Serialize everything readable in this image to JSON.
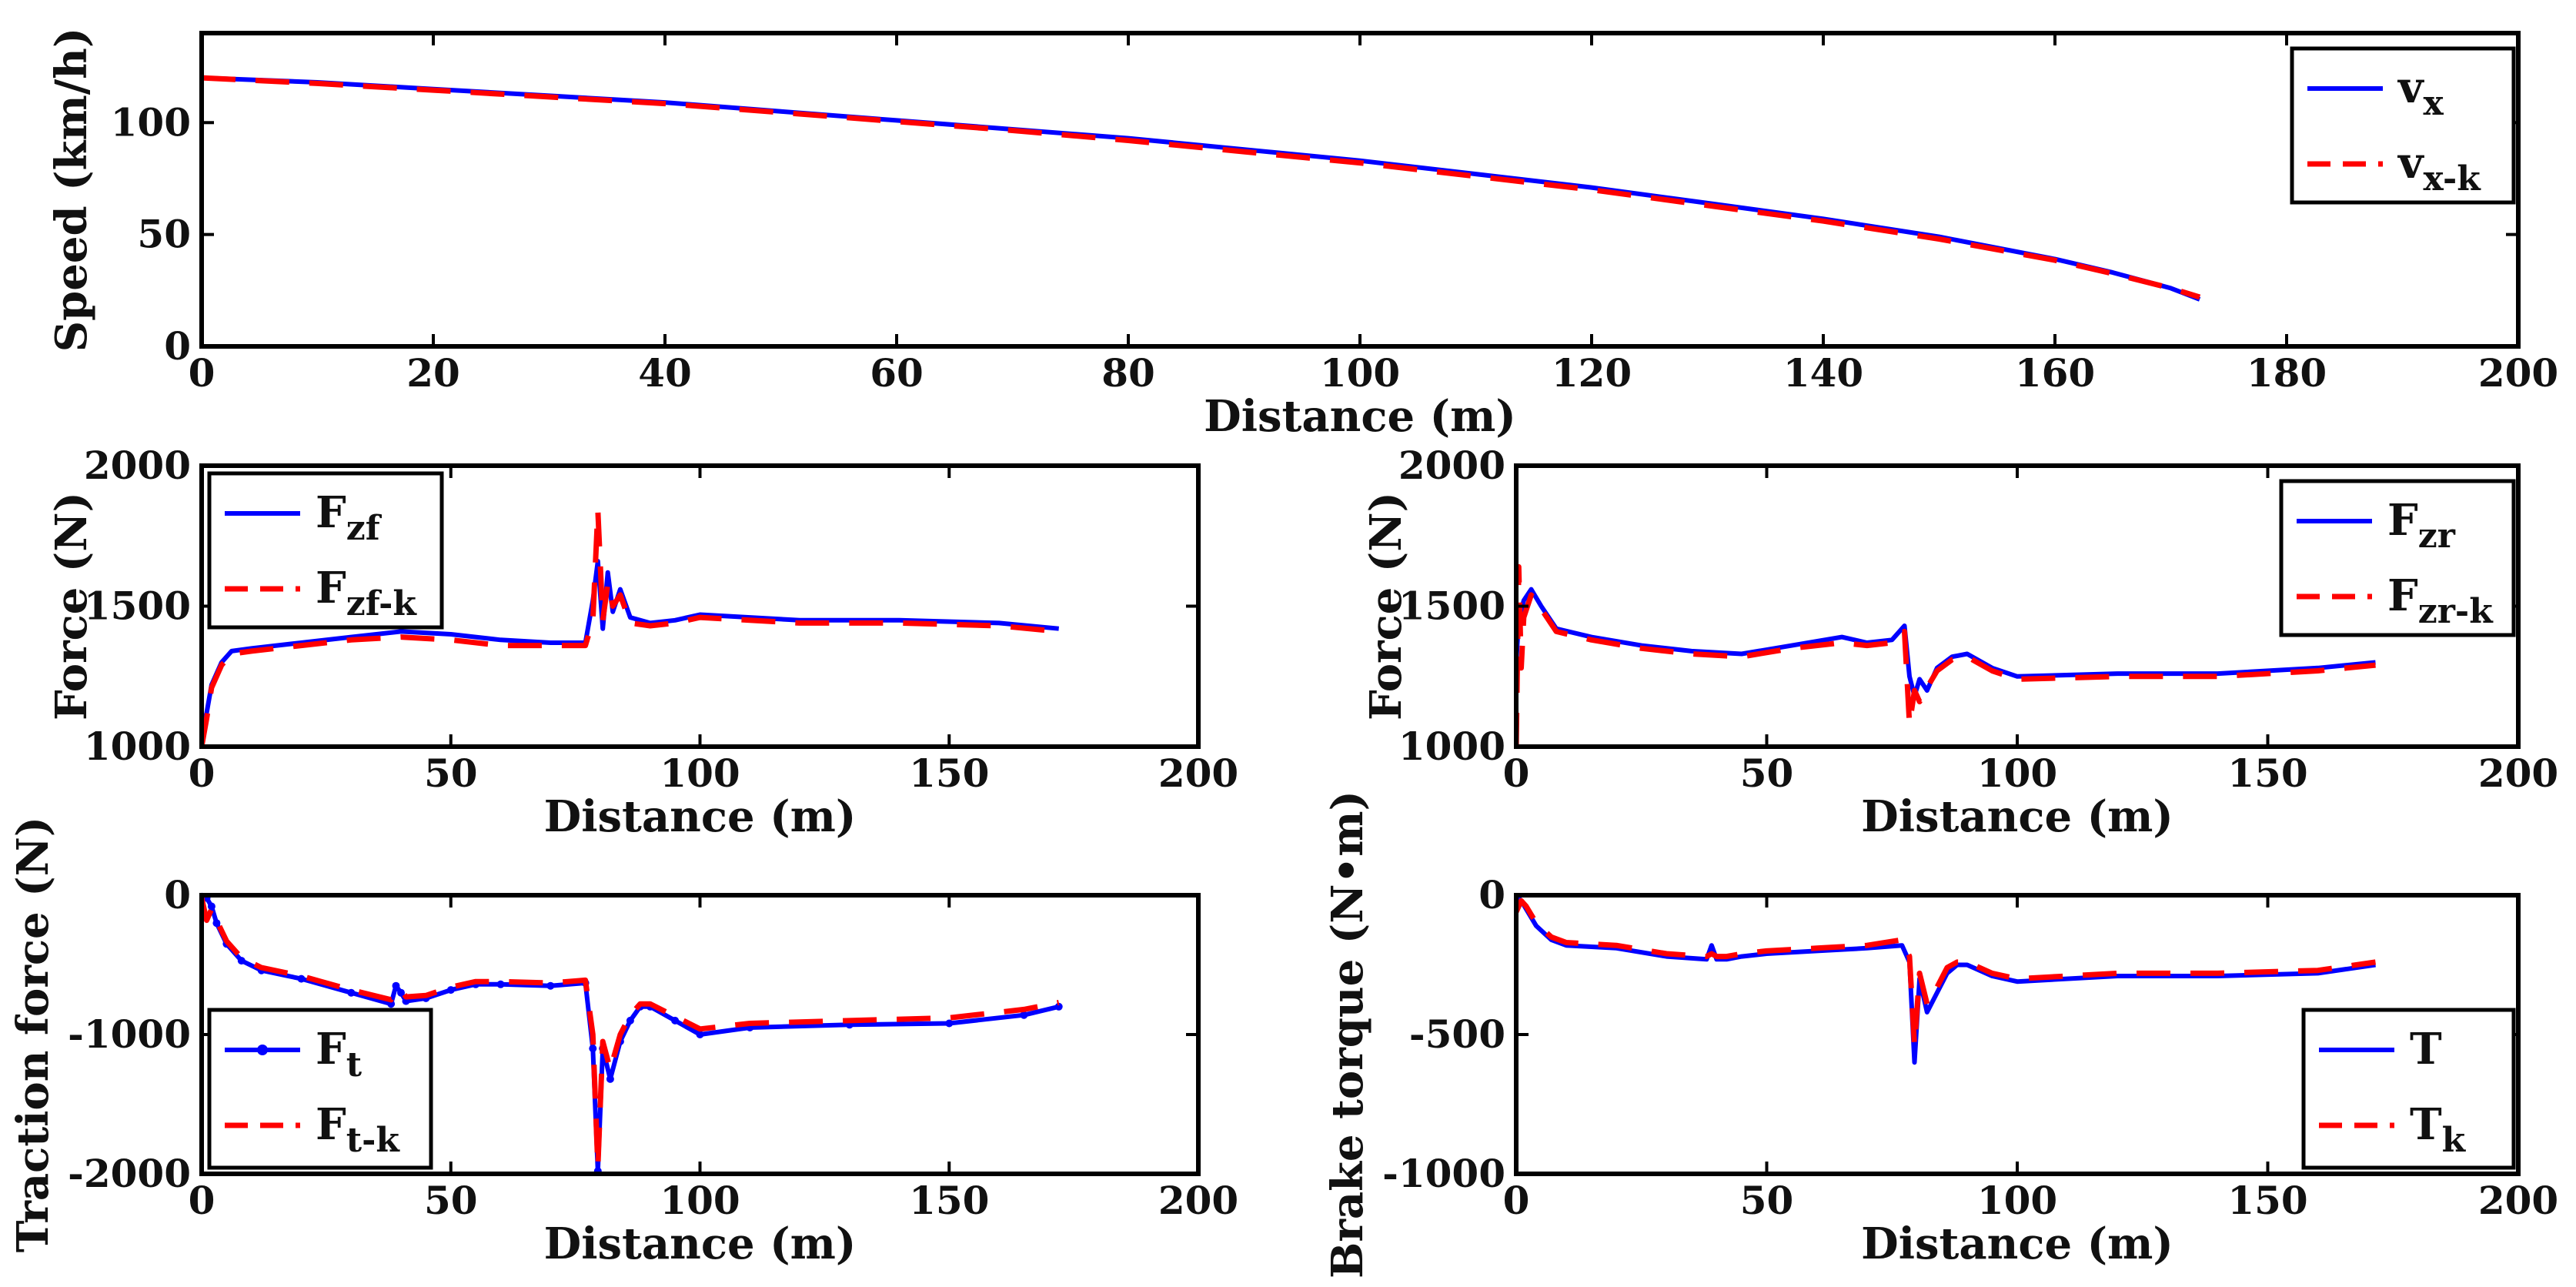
{
  "figure": {
    "background": "#ffffff",
    "axis_color": "#000000"
  },
  "chart_data": [
    {
      "id": "speed",
      "type": "line",
      "xlabel": "Distance (m)",
      "ylabel": "Speed (km/h)",
      "xlim": [
        0,
        200
      ],
      "ylim": [
        0,
        140
      ],
      "xticks": [
        0,
        20,
        40,
        60,
        80,
        100,
        120,
        140,
        160,
        180,
        200
      ],
      "yticks": [
        0,
        50,
        100
      ],
      "legend_position": "top-right",
      "series": [
        {
          "name": "vx",
          "label_main": "v",
          "label_sub": "x",
          "color": "#0000ff",
          "style": "solid",
          "x": [
            0,
            10,
            20,
            30,
            40,
            50,
            60,
            70,
            80,
            90,
            100,
            110,
            120,
            130,
            140,
            150,
            160,
            165,
            170,
            172.5
          ],
          "y": [
            120,
            118,
            115,
            112,
            109,
            105,
            101,
            97,
            93,
            88,
            83,
            77,
            71,
            64,
            57,
            49,
            39,
            33,
            26,
            21
          ]
        },
        {
          "name": "vx-k",
          "label_main": "v",
          "label_sub": "x-k",
          "color": "#ff0000",
          "style": "dashed",
          "x": [
            0,
            10,
            20,
            30,
            40,
            50,
            60,
            70,
            80,
            90,
            100,
            110,
            120,
            130,
            140,
            150,
            160,
            165,
            170,
            172.5
          ],
          "y": [
            120,
            117.5,
            114.5,
            111.5,
            108.5,
            104.5,
            100.5,
            96.5,
            92,
            87,
            82,
            76,
            70,
            63,
            56,
            48,
            38.5,
            32.5,
            26,
            22
          ]
        }
      ]
    },
    {
      "id": "front-force",
      "type": "line",
      "xlabel": "Distance (m)",
      "ylabel": "Force (N)",
      "xlim": [
        0,
        200
      ],
      "ylim": [
        1000,
        2000
      ],
      "xticks": [
        0,
        50,
        100,
        150,
        200
      ],
      "yticks": [
        1000,
        1500,
        2000
      ],
      "legend_position": "top-left",
      "series": [
        {
          "name": "Fzf",
          "label_main": "F",
          "label_sub": "zf",
          "color": "#0000ff",
          "style": "solid",
          "x": [
            0,
            1,
            2,
            4,
            6,
            10,
            20,
            30,
            40,
            50,
            60,
            70,
            77,
            78.5,
            79.5,
            80.5,
            81.5,
            82.5,
            84,
            86,
            90,
            95,
            100,
            110,
            120,
            140,
            160,
            172
          ],
          "y": [
            1060,
            1120,
            1220,
            1300,
            1340,
            1350,
            1370,
            1390,
            1410,
            1400,
            1380,
            1370,
            1370,
            1520,
            1660,
            1420,
            1620,
            1480,
            1560,
            1460,
            1440,
            1450,
            1470,
            1460,
            1450,
            1450,
            1440,
            1420
          ]
        },
        {
          "name": "Fzf-k",
          "label_main": "F",
          "label_sub": "zf-k",
          "color": "#ff0000",
          "style": "dashed",
          "x": [
            0,
            1,
            2,
            4,
            6,
            10,
            20,
            30,
            40,
            50,
            60,
            70,
            77,
            78.5,
            79.5,
            80.5,
            81.5,
            82.5,
            84,
            86,
            90,
            95,
            100,
            110,
            120,
            140,
            160,
            172
          ],
          "y": [
            1000,
            1100,
            1210,
            1290,
            1330,
            1340,
            1360,
            1380,
            1390,
            1380,
            1360,
            1360,
            1360,
            1450,
            1840,
            1450,
            1580,
            1500,
            1540,
            1440,
            1430,
            1440,
            1460,
            1450,
            1440,
            1440,
            1430,
            1410
          ]
        }
      ]
    },
    {
      "id": "rear-force",
      "type": "line",
      "xlabel": "Distance (m)",
      "ylabel": "Force (N)",
      "xlim": [
        0,
        200
      ],
      "ylim": [
        1000,
        2000
      ],
      "xticks": [
        0,
        50,
        100,
        150,
        200
      ],
      "yticks": [
        1000,
        1500,
        2000
      ],
      "legend_position": "top-right",
      "series": [
        {
          "name": "Fzr",
          "label_main": "F",
          "label_sub": "zr",
          "color": "#0000ff",
          "style": "solid",
          "x": [
            0,
            0.5,
            1.5,
            3,
            5,
            8,
            15,
            25,
            35,
            45,
            55,
            65,
            70,
            75,
            77.5,
            78.5,
            79.5,
            80.5,
            82,
            84,
            87,
            90,
            95,
            100,
            120,
            140,
            160,
            171.5
          ],
          "y": [
            1300,
            1450,
            1520,
            1560,
            1500,
            1420,
            1390,
            1360,
            1340,
            1330,
            1360,
            1390,
            1370,
            1380,
            1430,
            1250,
            1180,
            1240,
            1200,
            1280,
            1320,
            1330,
            1280,
            1250,
            1260,
            1260,
            1280,
            1300
          ]
        },
        {
          "name": "Fzr-k",
          "label_main": "F",
          "label_sub": "zr-k",
          "color": "#ff0000",
          "style": "dashed",
          "x": [
            0,
            0.5,
            1,
            1.5,
            3,
            5,
            8,
            15,
            25,
            35,
            45,
            55,
            65,
            70,
            75,
            77.5,
            78.5,
            79.5,
            80.5,
            82,
            84,
            87,
            90,
            95,
            100,
            120,
            140,
            160,
            171.5
          ],
          "y": [
            1000,
            1640,
            1280,
            1460,
            1540,
            1490,
            1410,
            1380,
            1350,
            1330,
            1320,
            1350,
            1370,
            1360,
            1370,
            1410,
            1080,
            1200,
            1160,
            1210,
            1270,
            1310,
            1320,
            1270,
            1240,
            1250,
            1250,
            1270,
            1290
          ]
        }
      ]
    },
    {
      "id": "traction",
      "type": "line",
      "xlabel": "Distance (m)",
      "ylabel": "Traction force (N)",
      "xlim": [
        0,
        200
      ],
      "ylim": [
        -2000,
        0
      ],
      "xticks": [
        0,
        50,
        100,
        150,
        200
      ],
      "yticks": [
        -2000,
        -1000,
        0
      ],
      "legend_position": "bottom-left",
      "series": [
        {
          "name": "Ft",
          "label_main": "F",
          "label_sub": "t",
          "color": "#0000ff",
          "style": "solid-marker",
          "x": [
            0,
            1,
            2,
            3,
            5,
            8,
            12,
            20,
            30,
            38,
            39,
            40,
            41,
            45,
            50,
            55,
            60,
            70,
            77,
            78.5,
            79.5,
            80.5,
            82,
            84,
            86,
            88,
            90,
            95,
            100,
            110,
            130,
            150,
            165,
            172
          ],
          "y": [
            -10,
            -20,
            -80,
            -200,
            -350,
            -470,
            -540,
            -600,
            -700,
            -780,
            -650,
            -700,
            -760,
            -740,
            -680,
            -640,
            -640,
            -650,
            -630,
            -1100,
            -1980,
            -1100,
            -1320,
            -1050,
            -900,
            -800,
            -800,
            -900,
            -1000,
            -950,
            -930,
            -920,
            -860,
            -800
          ]
        },
        {
          "name": "Ft-k",
          "label_main": "F",
          "label_sub": "t-k",
          "color": "#ff0000",
          "style": "dashed",
          "x": [
            0,
            1,
            2,
            3,
            5,
            8,
            12,
            20,
            30,
            38,
            39,
            40,
            41,
            45,
            50,
            55,
            60,
            70,
            77,
            78.5,
            79.5,
            80.5,
            82,
            84,
            86,
            88,
            90,
            95,
            100,
            110,
            130,
            150,
            165,
            172
          ],
          "y": [
            -20,
            -180,
            -100,
            -180,
            -330,
            -450,
            -520,
            -580,
            -680,
            -750,
            -690,
            -680,
            -730,
            -720,
            -660,
            -620,
            -620,
            -630,
            -610,
            -1000,
            -1950,
            -1050,
            -1250,
            -1000,
            -860,
            -780,
            -780,
            -870,
            -960,
            -920,
            -900,
            -880,
            -820,
            -770
          ]
        }
      ]
    },
    {
      "id": "brake-torque",
      "type": "line",
      "xlabel": "Distance (m)",
      "ylabel": "Brake torque (N•m)",
      "xlim": [
        0,
        200
      ],
      "ylim": [
        -1000,
        0
      ],
      "xticks": [
        0,
        50,
        100,
        150,
        200
      ],
      "yticks": [
        -1000,
        -500,
        0
      ],
      "legend_position": "bottom-right",
      "series": [
        {
          "name": "T",
          "label_main": "T",
          "label_sub": "",
          "color": "#0000ff",
          "style": "solid",
          "x": [
            0,
            1,
            2,
            4,
            7,
            10,
            20,
            30,
            38,
            39,
            40,
            42,
            45,
            50,
            60,
            70,
            77,
            78.5,
            79.5,
            80.5,
            82,
            84,
            86,
            88,
            90,
            95,
            100,
            120,
            140,
            160,
            171.5
          ],
          "y": [
            0,
            -20,
            -50,
            -110,
            -160,
            -180,
            -190,
            -220,
            -230,
            -180,
            -230,
            -230,
            -220,
            -210,
            -200,
            -190,
            -180,
            -240,
            -600,
            -300,
            -420,
            -350,
            -280,
            -250,
            -250,
            -290,
            -310,
            -290,
            -290,
            -280,
            -250
          ]
        },
        {
          "name": "Tk",
          "label_main": "T",
          "label_sub": "k",
          "color": "#ff0000",
          "style": "dashed",
          "x": [
            0,
            1,
            2,
            4,
            7,
            10,
            20,
            30,
            38,
            39,
            40,
            42,
            45,
            50,
            60,
            70,
            77,
            78.5,
            79.5,
            80.5,
            82,
            84,
            86,
            88,
            90,
            95,
            100,
            120,
            140,
            160,
            171.5
          ],
          "y": [
            -60,
            -20,
            -40,
            -100,
            -150,
            -170,
            -180,
            -210,
            -220,
            -210,
            -220,
            -220,
            -210,
            -200,
            -190,
            -180,
            -160,
            -220,
            -540,
            -280,
            -390,
            -330,
            -260,
            -240,
            -240,
            -280,
            -300,
            -280,
            -280,
            -270,
            -240
          ]
        }
      ]
    }
  ]
}
